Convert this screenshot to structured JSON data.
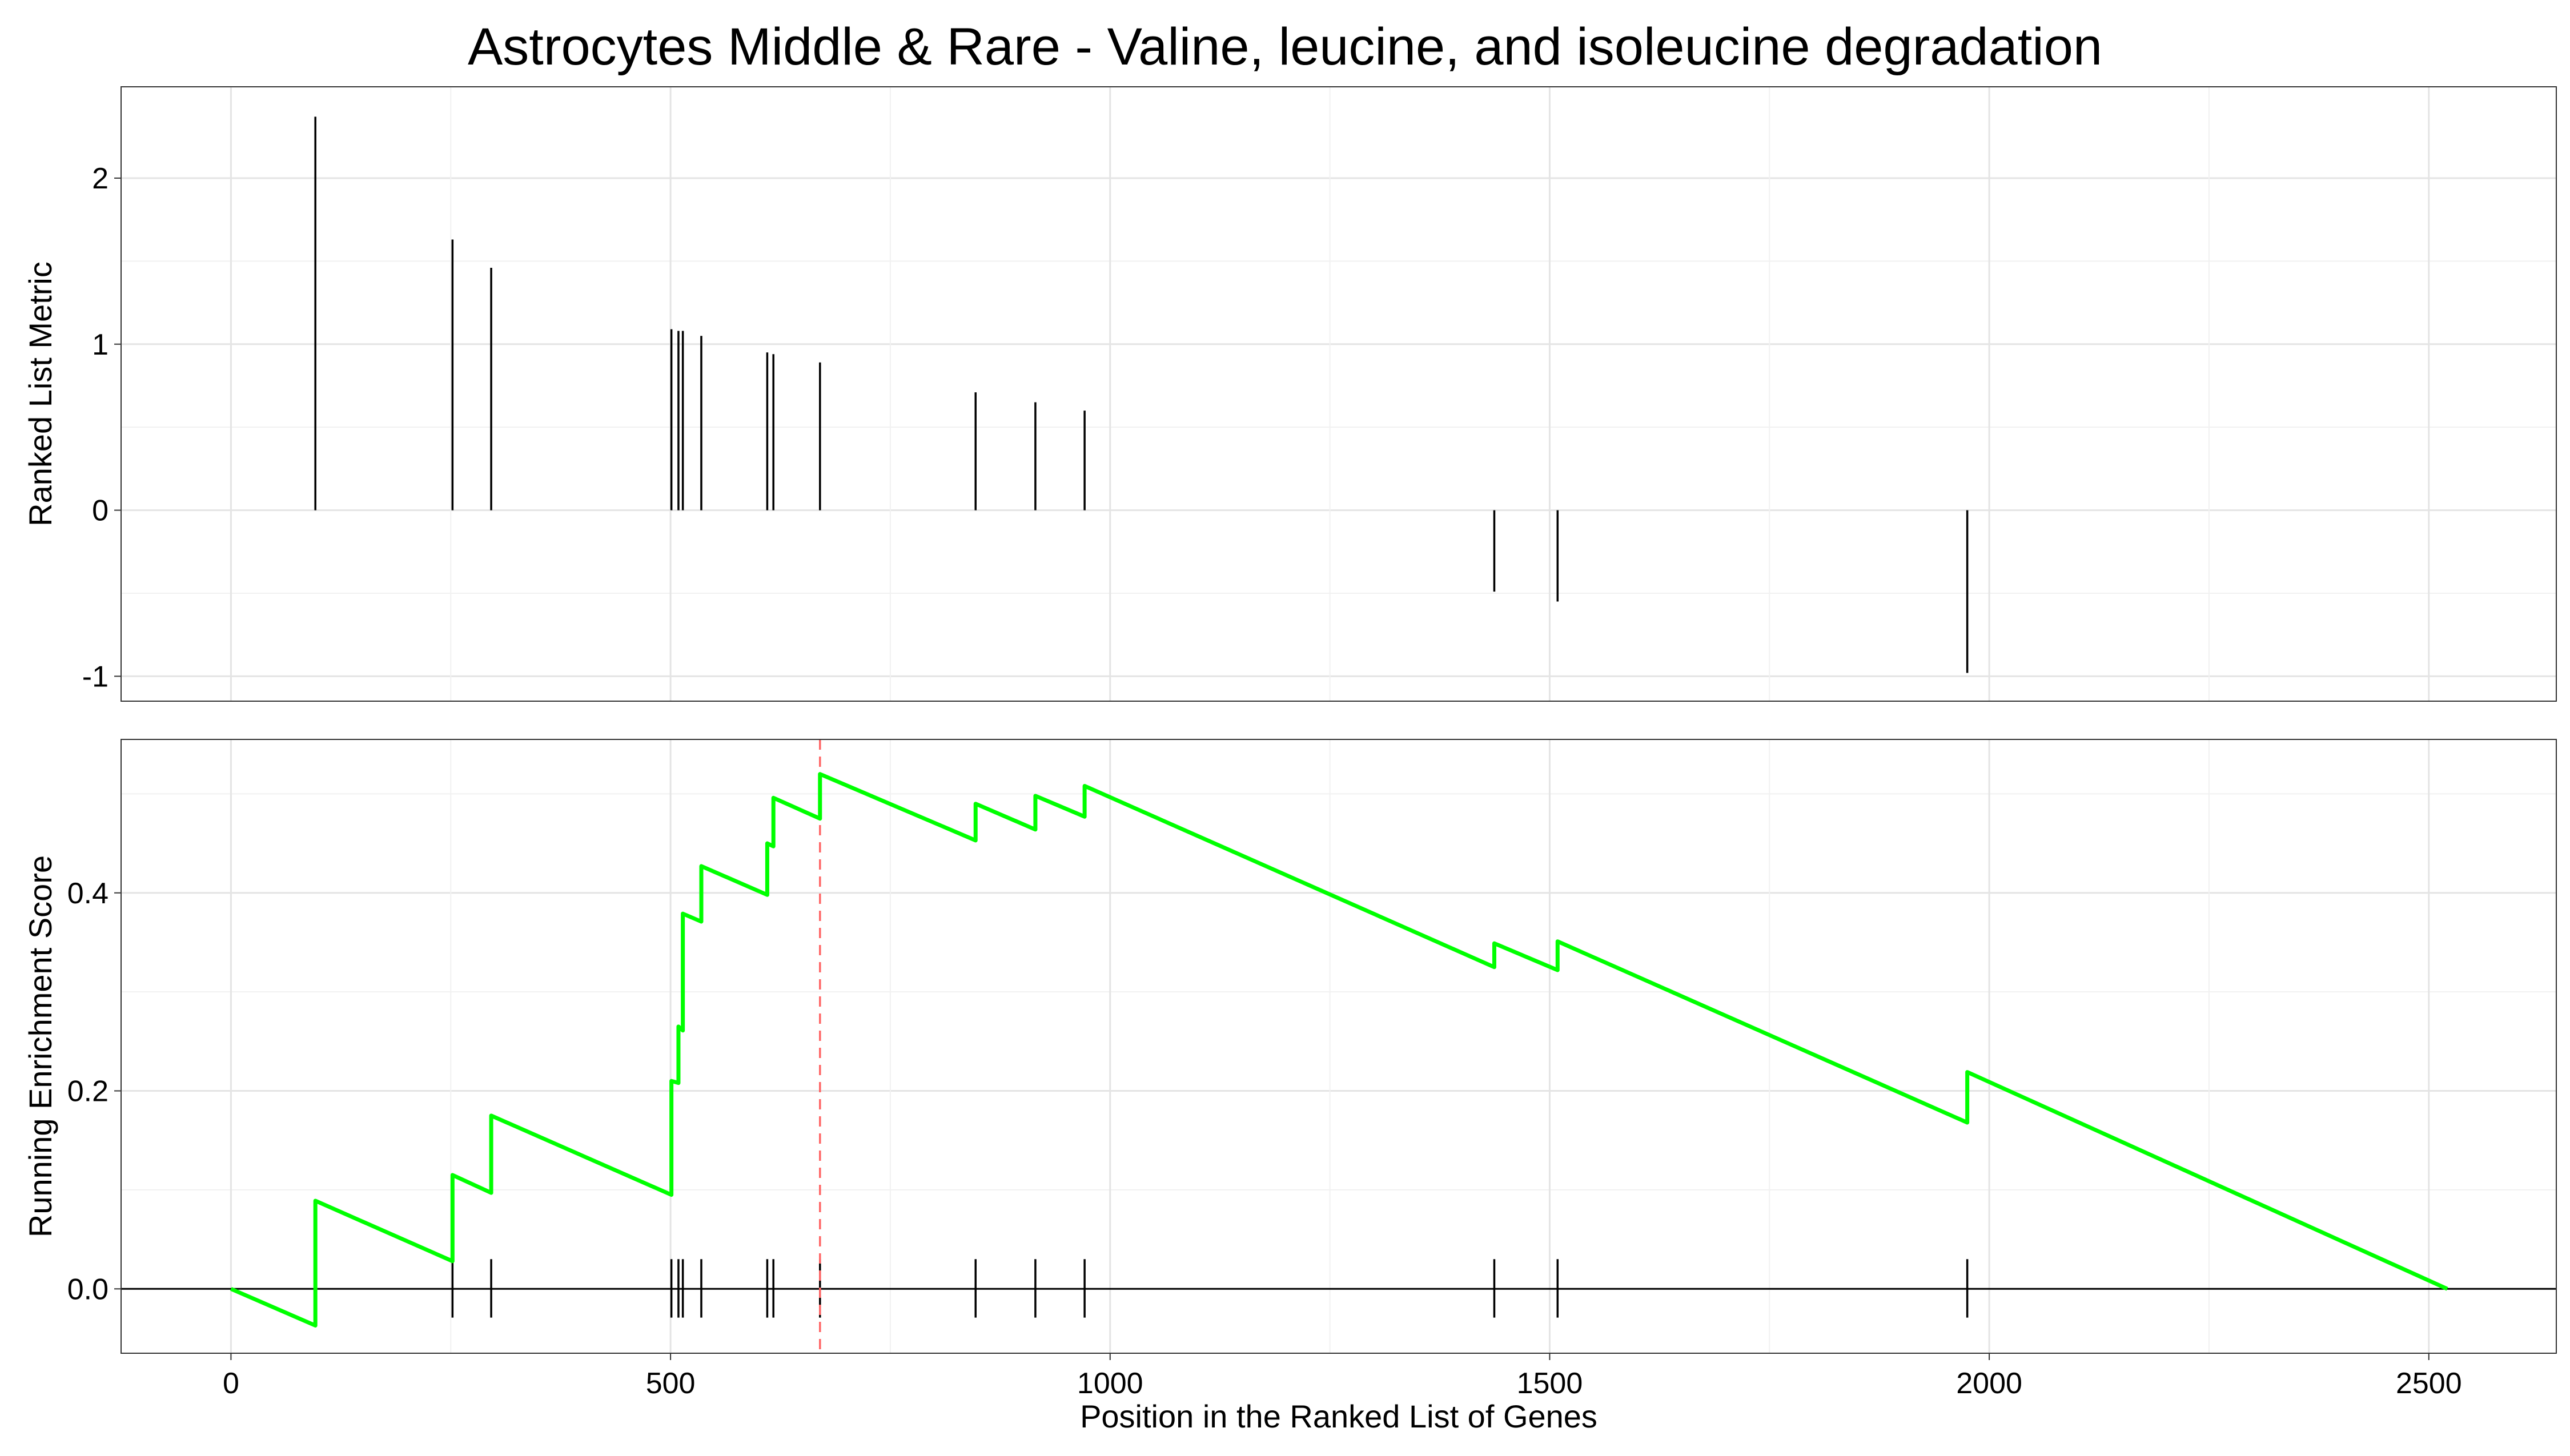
{
  "chart_data": {
    "type": "line",
    "title": "Astrocytes Middle & Rare - Valine, leucine, and isoleucine degradation",
    "xlabel": "Position in the Ranked List of Genes",
    "xlim": [
      -125,
      2645
    ],
    "x_ticks": [
      "0",
      "500",
      "1000",
      "1500",
      "2000",
      "2500"
    ],
    "x_tick_values": [
      0,
      500,
      1000,
      1500,
      2000,
      2500
    ],
    "grid": true,
    "gene_hits": [
      96,
      252,
      296,
      501,
      509,
      514,
      535,
      610,
      617,
      670,
      847,
      915,
      971,
      1437,
      1509,
      1975
    ],
    "panels": [
      {
        "name": "ranked-list-metric",
        "ylabel": "Ranked List Metric",
        "ylim": [
          -1.15,
          2.55
        ],
        "y_ticks": [
          "2",
          "1",
          "0",
          "-1"
        ],
        "y_tick_values": [
          2,
          1,
          0,
          -1
        ],
        "metric_values": [
          2.37,
          1.63,
          1.46,
          1.09,
          1.08,
          1.08,
          1.05,
          0.95,
          0.94,
          0.89,
          0.71,
          0.65,
          0.6,
          -0.49,
          -0.55,
          -0.98
        ]
      },
      {
        "name": "running-enrichment-score",
        "ylabel": "Running Enrichment Score",
        "ylim": [
          -0.065,
          0.555
        ],
        "y_ticks": [
          "0.4",
          "0.2",
          "0.0"
        ],
        "y_tick_values": [
          0.4,
          0.2,
          0.0
        ],
        "series_color": "#00FF00",
        "x": [
          0,
          96,
          96,
          252,
          252,
          296,
          296,
          501,
          501,
          509,
          509,
          514,
          514,
          535,
          535,
          610,
          610,
          617,
          617,
          670,
          670,
          847,
          847,
          915,
          915,
          971,
          971,
          1437,
          1437,
          1509,
          1509,
          1975,
          1975,
          2521
        ],
        "y": [
          0.0,
          -0.037,
          0.089,
          0.028,
          0.115,
          0.097,
          0.175,
          0.095,
          0.21,
          0.208,
          0.265,
          0.261,
          0.379,
          0.371,
          0.427,
          0.398,
          0.45,
          0.447,
          0.496,
          0.475,
          0.52,
          0.453,
          0.49,
          0.464,
          0.498,
          0.477,
          0.508,
          0.325,
          0.349,
          0.322,
          0.351,
          0.168,
          0.219,
          0.0
        ],
        "max_es_position": 670,
        "max_es_marker_color": "#FF6666"
      }
    ]
  }
}
